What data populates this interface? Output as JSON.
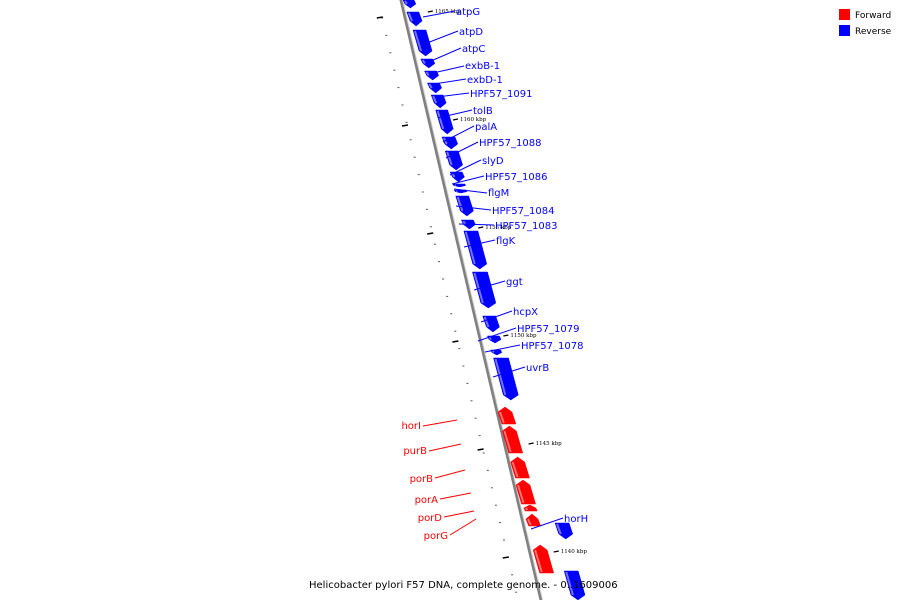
{
  "caption": "Helicobacter pylori F57 DNA, complete genome. - 0..1609006",
  "legend": [
    {
      "label": "Forward",
      "color": "#ff0000"
    },
    {
      "label": "Reverse",
      "color": "#0000ff"
    }
  ],
  "colors": {
    "forward": "#ff0000",
    "reverse": "#0000ff",
    "backbone": "#808080"
  },
  "kbp_ticks": [
    "1165 kbp",
    "1160 kbp",
    "1155 kbp",
    "1150 kbp",
    "1145 kbp",
    "1140 kbp"
  ],
  "genes": [
    {
      "name": "atpG",
      "strand": "reverse"
    },
    {
      "name": "atpD",
      "strand": "reverse"
    },
    {
      "name": "atpC",
      "strand": "reverse"
    },
    {
      "name": "exbB-1",
      "strand": "reverse"
    },
    {
      "name": "exbD-1",
      "strand": "reverse"
    },
    {
      "name": "HPF57_1091",
      "strand": "reverse"
    },
    {
      "name": "tolB",
      "strand": "reverse"
    },
    {
      "name": "palA",
      "strand": "reverse"
    },
    {
      "name": "HPF57_1088",
      "strand": "reverse"
    },
    {
      "name": "slyD",
      "strand": "reverse"
    },
    {
      "name": "HPF57_1086",
      "strand": "reverse"
    },
    {
      "name": "flgM",
      "strand": "reverse"
    },
    {
      "name": "HPF57_1084",
      "strand": "reverse"
    },
    {
      "name": "HPF57_1083",
      "strand": "reverse"
    },
    {
      "name": "flgK",
      "strand": "reverse"
    },
    {
      "name": "ggt",
      "strand": "reverse"
    },
    {
      "name": "hcpX",
      "strand": "reverse"
    },
    {
      "name": "HPF57_1079",
      "strand": "reverse"
    },
    {
      "name": "HPF57_1078",
      "strand": "reverse"
    },
    {
      "name": "uvrB",
      "strand": "reverse"
    },
    {
      "name": "horI",
      "strand": "forward"
    },
    {
      "name": "purB",
      "strand": "forward"
    },
    {
      "name": "porB",
      "strand": "forward"
    },
    {
      "name": "porA",
      "strand": "forward"
    },
    {
      "name": "porD",
      "strand": "forward"
    },
    {
      "name": "porG",
      "strand": "forward"
    },
    {
      "name": "horH",
      "strand": "reverse"
    }
  ]
}
